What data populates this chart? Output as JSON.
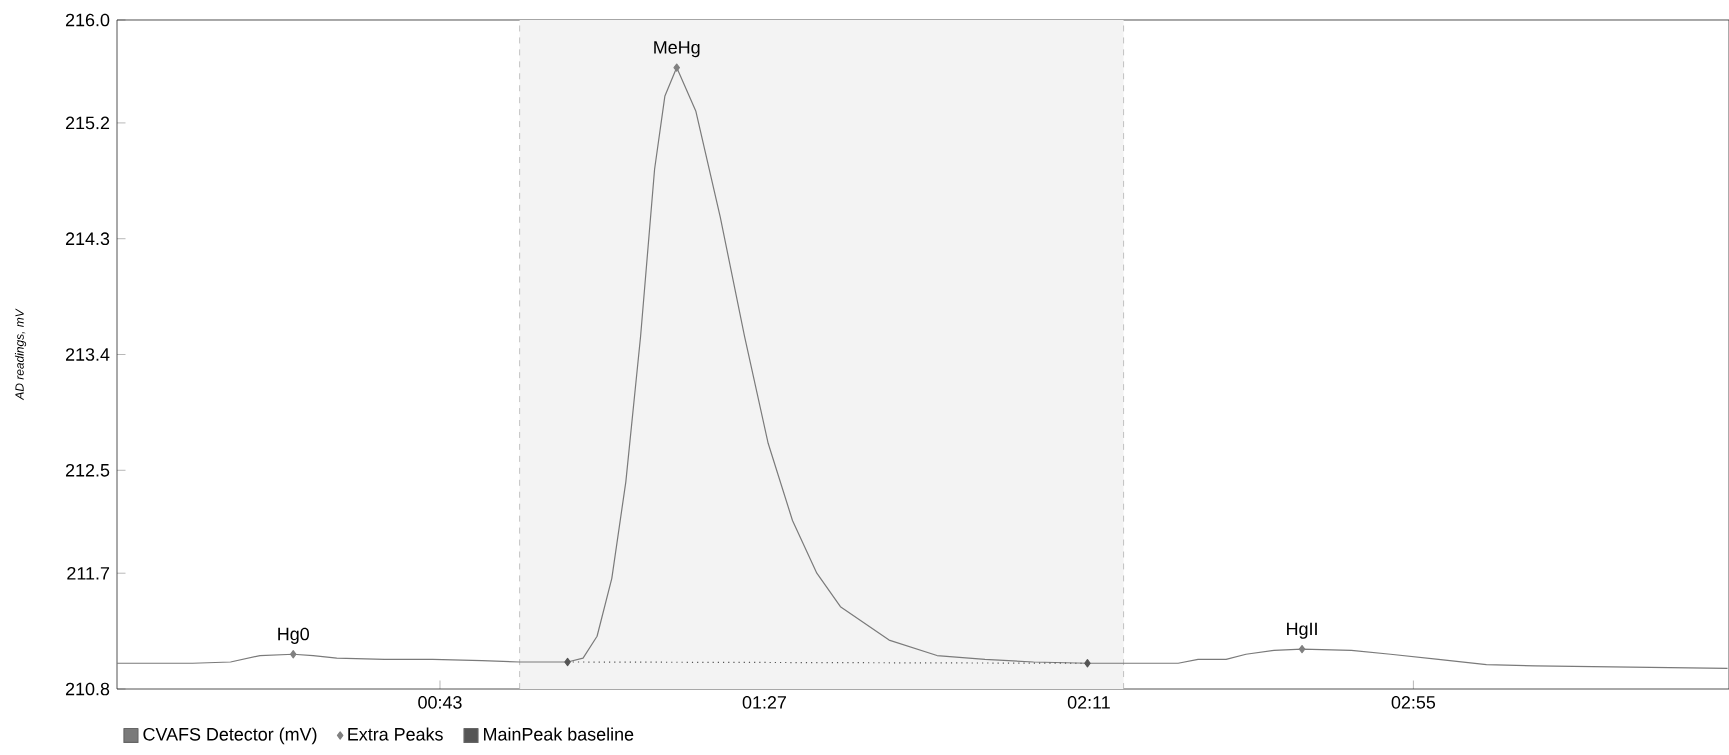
{
  "chart_data": {
    "type": "line",
    "ylabel": "AD readings, mV",
    "xlim": [
      -0.8,
      217.8
    ],
    "ylim": [
      210.8,
      216.0
    ],
    "xticks": [
      {
        "value": 43,
        "label": "00:43"
      },
      {
        "value": 87,
        "label": "01:27"
      },
      {
        "value": 131,
        "label": "02:11"
      },
      {
        "value": 175,
        "label": "02:55"
      }
    ],
    "yticks": [
      210.8,
      211.7,
      212.5,
      213.4,
      214.3,
      215.2,
      {
        "value": 216,
        "label": "216.0"
      }
    ],
    "legend": "bottom left",
    "bands": [
      {
        "axis": "x",
        "from": 53.8,
        "to": 135.7,
        "color": "#f3f3f3"
      }
    ],
    "ref_lines": [
      {
        "axis": "x",
        "value": 53.8,
        "color": "#b4b4b4",
        "line_style": "dashed"
      },
      {
        "axis": "x",
        "value": 135.7,
        "color": "#b4b4b4",
        "line_style": "dashed"
      }
    ],
    "annotations": [
      {
        "text": "Hg0",
        "x": 23.1,
        "y": 211.07
      },
      {
        "text": "MeHg",
        "x": 75.1,
        "y": 215.63
      },
      {
        "text": "HgII",
        "x": 159.9,
        "y": 211.11
      }
    ],
    "series": [
      {
        "name": "CVAFS Detector (mV)",
        "color": "#7a7a7a",
        "marker": "none",
        "x": [
          -0.8,
          9.45,
          14.6,
          18.6,
          23.1,
          25.8,
          29.0,
          35.5,
          42.0,
          48.7,
          53.8,
          60.3,
          62.4,
          64.3,
          66.3,
          68.2,
          70.2,
          72.1,
          73.5,
          75.1,
          77.7,
          81.0,
          84.3,
          87.5,
          90.8,
          94.1,
          97.3,
          103.9,
          110.4,
          116.9,
          123.5,
          130.8,
          136.5,
          143.1,
          145.8,
          149.6,
          152.3,
          156.1,
          159.9,
          166.6,
          171.9,
          178.4,
          184.9,
          191.5,
          204.5,
          217.6
        ],
        "values": [
          211.0,
          211.0,
          211.01,
          211.06,
          211.07,
          211.06,
          211.04,
          211.03,
          211.03,
          211.02,
          211.01,
          211.01,
          211.04,
          211.21,
          211.66,
          212.41,
          213.54,
          214.84,
          215.41,
          215.63,
          215.29,
          214.47,
          213.54,
          212.71,
          212.11,
          211.7,
          211.44,
          211.18,
          211.06,
          211.03,
          211.01,
          211.0,
          211.0,
          211.0,
          211.03,
          211.03,
          211.07,
          211.1,
          211.11,
          211.1,
          211.07,
          211.03,
          210.99,
          210.98,
          210.97,
          210.96
        ]
      },
      {
        "name": "Extra Peaks",
        "type": "scatter",
        "color": "#808080",
        "marker": "diamond",
        "x": [
          23.1,
          75.1,
          159.9
        ],
        "values": [
          211.07,
          215.63,
          211.11
        ]
      },
      {
        "name": "MainPeak baseline",
        "type": "line",
        "color": "#555555",
        "marker": "diamond",
        "line_style": "dotted",
        "x": [
          60.3,
          130.8
        ],
        "values": [
          211.01,
          211.0
        ]
      }
    ]
  }
}
